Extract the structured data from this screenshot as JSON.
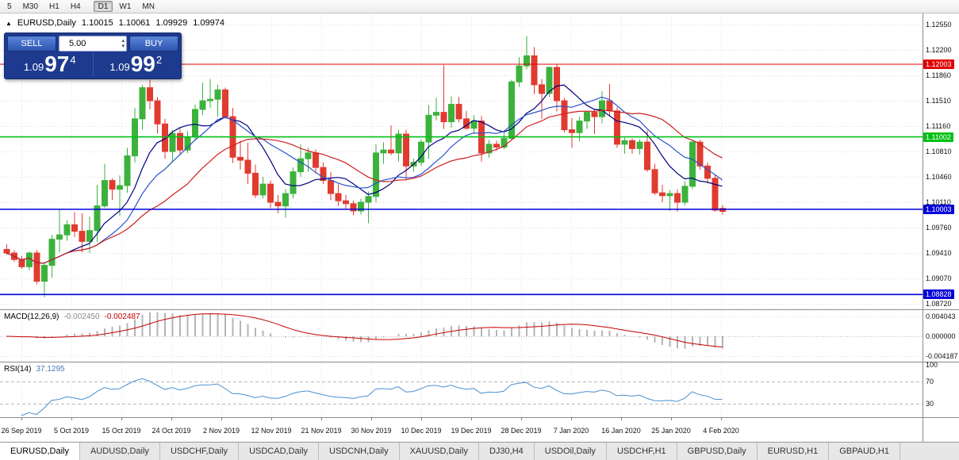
{
  "toolbar": {
    "timeframes": [
      "5",
      "M30",
      "H1",
      "H4",
      "D1",
      "W1",
      "MN"
    ],
    "active": "D1"
  },
  "header": {
    "symbol": "EURUSD,Daily",
    "open": "1.10015",
    "high": "1.10061",
    "low": "1.09929",
    "close": "1.09974"
  },
  "trade_panel": {
    "sell_label": "SELL",
    "buy_label": "BUY",
    "volume": "5.00",
    "sell_price": {
      "prefix": "1.09",
      "big": "97",
      "pip": "4"
    },
    "buy_price": {
      "prefix": "1.09",
      "big": "99",
      "pip": "2"
    }
  },
  "indicators": {
    "macd": {
      "title": "MACD(12,26,9)",
      "main_value": "-0.002450",
      "signal_value": "-0.002487",
      "axis_labels": [
        "0.004043",
        "0.000000",
        "-0.004187"
      ]
    },
    "rsi": {
      "title": "RSI(14)",
      "value": "37.1295",
      "axis_labels": [
        "100",
        "70",
        "30"
      ]
    }
  },
  "tabs": [
    "EURUSD,Daily",
    "AUDUSD,Daily",
    "USDCHF,Daily",
    "USDCAD,Daily",
    "USDCNH,Daily",
    "XAUUSD,Daily",
    "DJ30,H4",
    "USDOil,Daily",
    "USDCHF,H1",
    "GBPUSD,Daily",
    "EURUSD,H1",
    "GBPAUD,H1"
  ],
  "chart_data": {
    "type": "candlestick",
    "symbol": "EURUSD",
    "timeframe": "Daily",
    "ylim": [
      1.0855,
      1.127
    ],
    "price_axis_ticks": [
      "1.12550",
      "1.12200",
      "1.11860",
      "1.11510",
      "1.11160",
      "1.10810",
      "1.10460",
      "1.10110",
      "1.09760",
      "1.09410",
      "1.09070",
      "1.08720"
    ],
    "date_ticks": [
      "26 Sep 2019",
      "5 Oct 2019",
      "15 Oct 2019",
      "24 Oct 2019",
      "2 Nov 2019",
      "12 Nov 2019",
      "21 Nov 2019",
      "30 Nov 2019",
      "10 Dec 2019",
      "19 Dec 2019",
      "28 Dec 2019",
      "7 Jan 2020",
      "16 Jan 2020",
      "25 Jan 2020",
      "4 Feb 2020"
    ],
    "levels": [
      {
        "price": 1.12003,
        "label": "1.12003",
        "color": "#e00000",
        "width": 1
      },
      {
        "price": 1.11002,
        "label": "1.11002",
        "color": "#00c014",
        "width": 1.6
      },
      {
        "price": 1.10003,
        "label": "1.10003",
        "color": "#0000d8",
        "width": 1.6
      },
      {
        "price": 1.08828,
        "label": "1.08828",
        "color": "#0000d8",
        "width": 1.6
      }
    ],
    "moving_averages": [
      {
        "period": 8,
        "color": "#000080"
      },
      {
        "period": 13,
        "color": "#2952cc"
      },
      {
        "period": 21,
        "color": "#cc2020"
      }
    ],
    "macd_params": {
      "fast": 12,
      "slow": 26,
      "signal": 9
    },
    "rsi_params": {
      "period": 14,
      "levels": [
        70,
        30
      ]
    },
    "colors": {
      "bull": "#3cb23c",
      "bear": "#e13b30",
      "grid": "#e2e2e2",
      "background": "#ffffff"
    },
    "ohlc": [
      [
        1.0945,
        1.0952,
        1.0938,
        1.094
      ],
      [
        1.094,
        1.0944,
        1.0928,
        1.0931
      ],
      [
        1.0931,
        1.0936,
        1.0918,
        1.0921
      ],
      [
        1.0921,
        1.0942,
        1.0916,
        1.094
      ],
      [
        1.094,
        1.0944,
        1.0897,
        1.0901
      ],
      [
        1.0901,
        1.0926,
        1.0879,
        1.0923
      ],
      [
        1.0923,
        1.0965,
        1.0906,
        1.0959
      ],
      [
        1.0959,
        1.0999,
        1.0941,
        1.0965
      ],
      [
        1.0965,
        1.0985,
        1.0957,
        1.0979
      ],
      [
        1.0979,
        1.0996,
        1.0962,
        1.097
      ],
      [
        1.097,
        1.0995,
        1.0941,
        1.0956
      ],
      [
        1.0956,
        1.099,
        1.094,
        1.0971
      ],
      [
        1.0971,
        1.1034,
        1.0955,
        1.1005
      ],
      [
        1.1005,
        1.1063,
        1.1002,
        1.104
      ],
      [
        1.104,
        1.1043,
        1.1013,
        1.1028
      ],
      [
        1.1028,
        1.1047,
        1.0991,
        1.1033
      ],
      [
        1.1033,
        1.1085,
        1.1023,
        1.1074
      ],
      [
        1.1074,
        1.114,
        1.1065,
        1.1125
      ],
      [
        1.1125,
        1.1172,
        1.111,
        1.1168
      ],
      [
        1.1168,
        1.1179,
        1.1138,
        1.115
      ],
      [
        1.115,
        1.1155,
        1.1105,
        1.1118
      ],
      [
        1.1118,
        1.1125,
        1.107,
        1.108
      ],
      [
        1.108,
        1.111,
        1.1065,
        1.1105
      ],
      [
        1.1105,
        1.1112,
        1.1075,
        1.1082
      ],
      [
        1.1082,
        1.1108,
        1.1078,
        1.11
      ],
      [
        1.11,
        1.1145,
        1.1095,
        1.1138
      ],
      [
        1.1138,
        1.1175,
        1.113,
        1.115
      ],
      [
        1.115,
        1.118,
        1.114,
        1.1152
      ],
      [
        1.1152,
        1.1172,
        1.1128,
        1.1165
      ],
      [
        1.1165,
        1.1168,
        1.1125,
        1.1128
      ],
      [
        1.1128,
        1.114,
        1.1064,
        1.1072
      ],
      [
        1.1072,
        1.1095,
        1.1055,
        1.1068
      ],
      [
        1.1068,
        1.1092,
        1.1035,
        1.105
      ],
      [
        1.105,
        1.1062,
        1.1016,
        1.102
      ],
      [
        1.102,
        1.1045,
        1.1015,
        1.1035
      ],
      [
        1.1035,
        1.104,
        1.1002,
        1.101
      ],
      [
        1.101,
        1.102,
        1.0995,
        1.1005
      ],
      [
        1.1005,
        1.1028,
        1.0989,
        1.1022
      ],
      [
        1.1022,
        1.1058,
        1.1015,
        1.1052
      ],
      [
        1.1052,
        1.109,
        1.1045,
        1.107
      ],
      [
        1.107,
        1.1085,
        1.1052,
        1.1078
      ],
      [
        1.1078,
        1.1083,
        1.105,
        1.1058
      ],
      [
        1.1058,
        1.1065,
        1.1035,
        1.104
      ],
      [
        1.104,
        1.1052,
        1.1013,
        1.1022
      ],
      [
        1.1022,
        1.1035,
        1.1005,
        1.1012
      ],
      [
        1.1012,
        1.102,
        1.1001,
        1.1008
      ],
      [
        1.1008,
        1.1012,
        1.0992,
        1.0998
      ],
      [
        1.0998,
        1.1015,
        1.0993,
        1.101
      ],
      [
        1.101,
        1.1025,
        1.0981,
        1.1018
      ],
      [
        1.1018,
        1.109,
        1.101,
        1.1078
      ],
      [
        1.1078,
        1.1093,
        1.1063,
        1.1082
      ],
      [
        1.1082,
        1.1116,
        1.1075,
        1.1078
      ],
      [
        1.1078,
        1.111,
        1.1066,
        1.1104
      ],
      [
        1.1104,
        1.111,
        1.104,
        1.106
      ],
      [
        1.106,
        1.107,
        1.1052,
        1.1065
      ],
      [
        1.1065,
        1.1097,
        1.106,
        1.1093
      ],
      [
        1.1093,
        1.1144,
        1.107,
        1.113
      ],
      [
        1.113,
        1.1154,
        1.1123,
        1.1134
      ],
      [
        1.1134,
        1.1199,
        1.1111,
        1.1121
      ],
      [
        1.1121,
        1.1156,
        1.1113,
        1.1145
      ],
      [
        1.1145,
        1.1155,
        1.112,
        1.1125
      ],
      [
        1.1125,
        1.1136,
        1.111,
        1.1112
      ],
      [
        1.1112,
        1.113,
        1.1104,
        1.1122
      ],
      [
        1.1122,
        1.1129,
        1.1066,
        1.1078
      ],
      [
        1.1078,
        1.1096,
        1.1071,
        1.109
      ],
      [
        1.109,
        1.1095,
        1.1081,
        1.1086
      ],
      [
        1.1086,
        1.1106,
        1.1083,
        1.1098
      ],
      [
        1.1098,
        1.1179,
        1.1096,
        1.1176
      ],
      [
        1.1176,
        1.121,
        1.1169,
        1.1198
      ],
      [
        1.1198,
        1.1239,
        1.1193,
        1.1212
      ],
      [
        1.1212,
        1.1224,
        1.1159,
        1.1172
      ],
      [
        1.1172,
        1.118,
        1.1125,
        1.116
      ],
      [
        1.116,
        1.1197,
        1.1155,
        1.1196
      ],
      [
        1.1196,
        1.12,
        1.1135,
        1.115
      ],
      [
        1.115,
        1.1154,
        1.1106,
        1.111
      ],
      [
        1.111,
        1.1126,
        1.1085,
        1.1106
      ],
      [
        1.1106,
        1.1128,
        1.1094,
        1.1122
      ],
      [
        1.1122,
        1.1135,
        1.1111,
        1.1134
      ],
      [
        1.1134,
        1.1139,
        1.1104,
        1.1128
      ],
      [
        1.1128,
        1.1163,
        1.1119,
        1.115
      ],
      [
        1.115,
        1.1173,
        1.1128,
        1.1136
      ],
      [
        1.1136,
        1.1141,
        1.1085,
        1.109
      ],
      [
        1.109,
        1.1099,
        1.1077,
        1.1095
      ],
      [
        1.1095,
        1.1098,
        1.1077,
        1.1084
      ],
      [
        1.1084,
        1.1097,
        1.1076,
        1.1093
      ],
      [
        1.1093,
        1.1109,
        1.1052,
        1.1055
      ],
      [
        1.1055,
        1.1063,
        1.102,
        1.1023
      ],
      [
        1.1023,
        1.1034,
        1.101,
        1.1019
      ],
      [
        1.1019,
        1.1027,
        1.0998,
        1.1022
      ],
      [
        1.1022,
        1.1028,
        1.0997,
        1.101
      ],
      [
        1.101,
        1.1039,
        1.1006,
        1.1032
      ],
      [
        1.1032,
        1.1095,
        1.1028,
        1.1093
      ],
      [
        1.1093,
        1.1096,
        1.1055,
        1.106
      ],
      [
        1.106,
        1.1065,
        1.1036,
        1.1043
      ],
      [
        1.1043,
        1.1048,
        1.0997,
        1.0999
      ],
      [
        1.10015,
        1.10061,
        1.09929,
        1.09974
      ]
    ]
  }
}
